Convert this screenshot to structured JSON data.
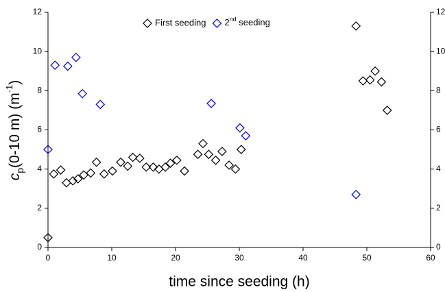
{
  "chart_data": {
    "type": "scatter",
    "xlabel": "time since seeding (h)",
    "ylabel": "cp(0-10 m) (m-1)",
    "xlim": [
      0,
      60
    ],
    "xticks": [
      0,
      10,
      20,
      30,
      40,
      50,
      60
    ],
    "ylim": [
      0,
      12
    ],
    "yticks": [
      0,
      2,
      4,
      6,
      8,
      10,
      12
    ],
    "y2lim": [
      0,
      12
    ],
    "y2ticks": [
      0,
      2,
      4,
      6,
      8,
      10,
      12
    ],
    "legend": "top",
    "series": [
      {
        "name": "First seeding",
        "color": "#000000",
        "x": [
          0,
          0.9,
          2.0,
          2.9,
          3.9,
          4.7,
          5.6,
          6.7,
          7.6,
          8.8,
          10.1,
          11.4,
          12.5,
          13.3,
          14.4,
          15.4,
          16.5,
          17.4,
          18.4,
          19.2,
          20.2,
          21.4,
          23.5,
          24.3,
          25.2,
          26.3,
          27.3,
          28.4,
          29.4,
          30.3,
          48.3,
          49.4,
          50.5,
          51.3,
          52.3,
          53.2
        ],
        "values": [
          0.5,
          3.75,
          3.95,
          3.3,
          3.4,
          3.5,
          3.7,
          3.8,
          4.35,
          3.75,
          3.9,
          4.35,
          4.15,
          4.6,
          4.55,
          4.1,
          4.1,
          4.0,
          4.1,
          4.3,
          4.45,
          3.9,
          4.75,
          5.3,
          4.75,
          4.45,
          4.9,
          4.2,
          4.0,
          5.0,
          11.3,
          8.5,
          8.55,
          9.0,
          8.45,
          7.0
        ]
      },
      {
        "name": "2nd seeding",
        "color": "#0000cc",
        "x": [
          0,
          1.1,
          3.1,
          4.4,
          5.4,
          8.2,
          25.6,
          30.1,
          31.0,
          48.3
        ],
        "values": [
          5.0,
          9.3,
          9.25,
          9.7,
          7.85,
          7.3,
          7.35,
          6.1,
          5.7,
          2.7
        ]
      }
    ]
  }
}
